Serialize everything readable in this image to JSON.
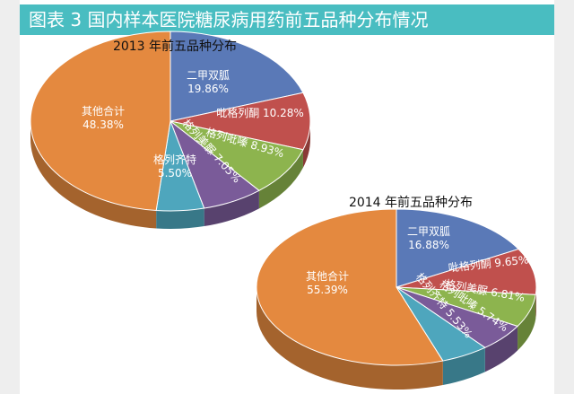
{
  "header": {
    "title": "图表 3  国内样本医院糖尿病用药前五品种分布情况"
  },
  "colors": {
    "header_bg": "#49bdc1",
    "slice_orange": "#e4893f",
    "slice_blue": "#5a79b7",
    "slice_red": "#c0504d",
    "slice_green": "#8db44e",
    "slice_purple": "#7a5b99",
    "slice_teal": "#4ea6bd"
  },
  "chart_data": [
    {
      "type": "pie",
      "title": "2013 年前五品种分布",
      "slices": [
        {
          "name": "二甲双胍",
          "value": 19.86,
          "label": "二甲双胍\n19.86%",
          "color": "#5a79b7"
        },
        {
          "name": "吡格列酮",
          "value": 10.28,
          "label": "吡格列酮 10.28%",
          "color": "#c0504d"
        },
        {
          "name": "格列吡嗪",
          "value": 8.93,
          "label": "格列吡嗪 8.93%",
          "color": "#8db44e"
        },
        {
          "name": "格列美脲",
          "value": 7.05,
          "label": "格列美脲 7.05%",
          "color": "#7a5b99"
        },
        {
          "name": "格列齐特",
          "value": 5.5,
          "label": "格列齐特\n5.50%",
          "color": "#4ea6bd"
        },
        {
          "name": "其他合计",
          "value": 48.38,
          "label": "其他合计\n48.38%",
          "color": "#e4893f"
        }
      ]
    },
    {
      "type": "pie",
      "title": "2014 年前五品种分布",
      "slices": [
        {
          "name": "二甲双胍",
          "value": 16.88,
          "label": "二甲双胍\n16.88%",
          "color": "#5a79b7"
        },
        {
          "name": "吡格列酮",
          "value": 9.65,
          "label": "吡格列酮 9.65%",
          "color": "#c0504d"
        },
        {
          "name": "格列美脲",
          "value": 6.81,
          "label": "格列美脲 6.81%",
          "color": "#8db44e"
        },
        {
          "name": "格列吡嗪",
          "value": 5.74,
          "label": "格列吡嗪 5.74%",
          "color": "#7a5b99"
        },
        {
          "name": "格列齐特",
          "value": 5.53,
          "label": "格列齐特 5.53%",
          "color": "#4ea6bd"
        },
        {
          "name": "其他合计",
          "value": 55.39,
          "label": "其他合计\n55.39%",
          "color": "#e4893f"
        }
      ]
    }
  ]
}
